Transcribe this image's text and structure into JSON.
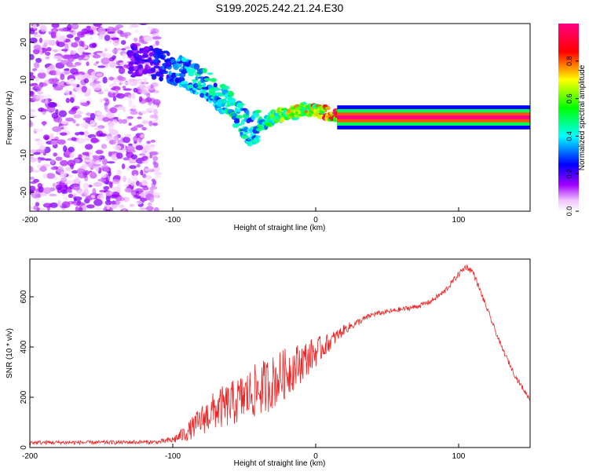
{
  "title": "S199.2025.242.21.24.E30",
  "chart_data": [
    {
      "type": "heatmap",
      "name": "spectrogram",
      "xlabel": "Height of straight line (km)",
      "ylabel": "Frequency (Hz)",
      "xlim": [
        -200,
        150
      ],
      "ylim": [
        -25,
        25
      ],
      "xticks": [
        -200,
        -100,
        0,
        100
      ],
      "yticks": [
        -20,
        -10,
        0,
        10,
        20
      ],
      "colorbar": {
        "label": "Normalized spectral amplitude",
        "range": [
          0,
          1
        ],
        "ticks": [
          0,
          0.2,
          0.4,
          0.6,
          0.8
        ],
        "tick_labels": [
          "0.0",
          "0.2",
          "0.4",
          "0.6",
          "0.8"
        ],
        "colormap": [
          "#ffffff",
          "#f0c0ff",
          "#a000ff",
          "#0000ff",
          "#00ffff",
          "#00ff00",
          "#ffff00",
          "#ff0000",
          "#ff0080"
        ]
      },
      "ridge": {
        "x": [
          -120,
          -100,
          -90,
          -80,
          -70,
          -60,
          -50,
          -45,
          -40,
          -30,
          -20,
          -10,
          0,
          10,
          20,
          150
        ],
        "y": [
          15,
          13,
          12,
          9,
          7,
          3,
          -1,
          -4,
          -2,
          0,
          1,
          2,
          2,
          1,
          0,
          0
        ],
        "amplitude": [
          0.2,
          0.35,
          0.4,
          0.45,
          0.45,
          0.5,
          0.45,
          0.4,
          0.5,
          0.6,
          0.7,
          0.75,
          0.8,
          0.9,
          1.0,
          1.0
        ]
      },
      "noise_region": {
        "x": [
          -200,
          -110
        ],
        "y": [
          -25,
          25
        ],
        "amplitude_max": 0.15
      }
    },
    {
      "type": "line",
      "name": "snr",
      "xlabel": "Height of straight line (km)",
      "ylabel": "SNR (10 * v/v)",
      "xlim": [
        -200,
        150
      ],
      "ylim": [
        0,
        750
      ],
      "xticks": [
        -200,
        -100,
        0,
        100
      ],
      "yticks": [
        0,
        200,
        400,
        600
      ],
      "color": "#ee2222",
      "series": [
        {
          "name": "SNR",
          "x": [
            -200,
            -150,
            -110,
            -100,
            -90,
            -80,
            -70,
            -60,
            -50,
            -40,
            -30,
            -20,
            -10,
            0,
            10,
            20,
            30,
            40,
            50,
            60,
            70,
            80,
            90,
            100,
            105,
            110,
            120,
            130,
            140,
            150
          ],
          "y": [
            20,
            20,
            22,
            30,
            60,
            110,
            150,
            170,
            200,
            230,
            260,
            300,
            340,
            380,
            420,
            470,
            500,
            530,
            540,
            550,
            560,
            580,
            620,
            690,
            720,
            700,
            550,
            400,
            280,
            190
          ],
          "noise_amp": [
            8,
            8,
            8,
            15,
            35,
            60,
            80,
            90,
            100,
            110,
            110,
            100,
            80,
            60,
            35,
            20,
            15,
            10,
            10,
            10,
            10,
            10,
            12,
            12,
            12,
            12,
            12,
            10,
            10,
            10
          ]
        }
      ]
    }
  ]
}
